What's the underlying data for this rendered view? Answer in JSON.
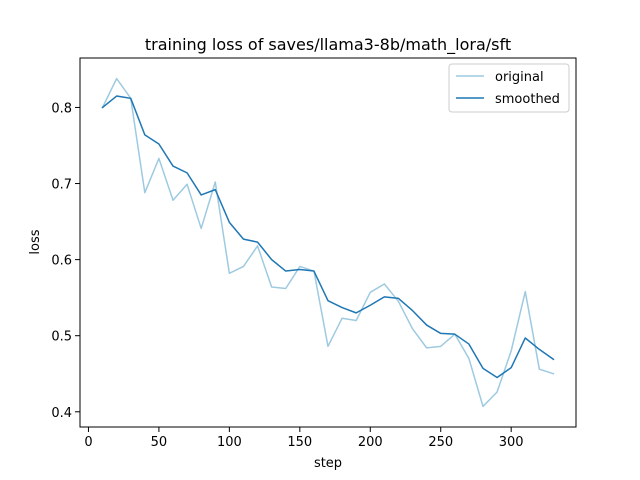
{
  "chart_data": {
    "type": "line",
    "title": "training loss of saves/llama3-8b/math_lora/sft",
    "xlabel": "step",
    "ylabel": "loss",
    "xlim": [
      -6,
      346
    ],
    "ylim": [
      0.38,
      0.865
    ],
    "xticks": [
      0,
      50,
      100,
      150,
      200,
      250,
      300
    ],
    "yticks": [
      0.4,
      0.5,
      0.6,
      0.7,
      0.8
    ],
    "ytick_labels": [
      "0.4",
      "0.5",
      "0.6",
      "0.7",
      "0.8"
    ],
    "legend_position": "top-right",
    "x": [
      10,
      20,
      30,
      40,
      50,
      60,
      70,
      80,
      90,
      100,
      110,
      120,
      130,
      140,
      150,
      160,
      170,
      180,
      190,
      200,
      210,
      220,
      230,
      240,
      250,
      260,
      270,
      280,
      290,
      300,
      310,
      320,
      330
    ],
    "series": [
      {
        "name": "original",
        "color": "#9ecae1",
        "values": [
          0.8,
          0.838,
          0.812,
          0.688,
          0.733,
          0.678,
          0.699,
          0.641,
          0.702,
          0.582,
          0.591,
          0.618,
          0.564,
          0.562,
          0.591,
          0.585,
          0.486,
          0.523,
          0.52,
          0.557,
          0.568,
          0.545,
          0.509,
          0.484,
          0.486,
          0.502,
          0.47,
          0.407,
          0.426,
          0.48,
          0.558,
          0.456,
          0.45
        ]
      },
      {
        "name": "smoothed",
        "color": "#1f77b4",
        "values": [
          0.8,
          0.815,
          0.812,
          0.764,
          0.752,
          0.723,
          0.714,
          0.685,
          0.692,
          0.649,
          0.627,
          0.623,
          0.6,
          0.585,
          0.587,
          0.585,
          0.546,
          0.537,
          0.53,
          0.54,
          0.551,
          0.549,
          0.533,
          0.514,
          0.503,
          0.502,
          0.489,
          0.457,
          0.445,
          0.458,
          0.497,
          0.482,
          0.469
        ]
      }
    ]
  }
}
